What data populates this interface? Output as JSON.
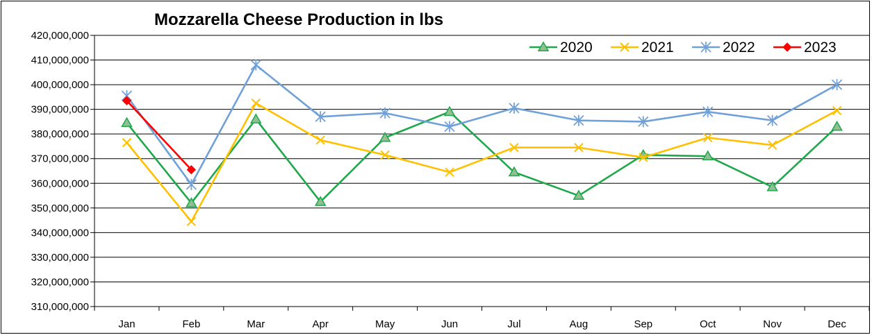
{
  "chart_data": {
    "type": "line",
    "title": "Mozzarella Cheese Production in lbs",
    "xlabel": "",
    "ylabel": "",
    "categories": [
      "Jan",
      "Feb",
      "Mar",
      "Apr",
      "May",
      "Jun",
      "Jul",
      "Aug",
      "Sep",
      "Oct",
      "Nov",
      "Dec"
    ],
    "ylim": [
      310000000,
      420000000
    ],
    "ytick_values": [
      310000000,
      320000000,
      330000000,
      340000000,
      350000000,
      360000000,
      370000000,
      380000000,
      390000000,
      400000000,
      410000000,
      420000000
    ],
    "ytick_labels": [
      "310,000,000",
      "320,000,000",
      "330,000,000",
      "340,000,000",
      "350,000,000",
      "360,000,000",
      "370,000,000",
      "380,000,000",
      "390,000,000",
      "400,000,000",
      "410,000,000",
      "420,000,000"
    ],
    "grid": true,
    "legend_position": "top-right",
    "series": [
      {
        "name": "2020",
        "color": "#1ea84a",
        "marker": "triangle",
        "values": [
          384500000,
          352000000,
          386000000,
          352500000,
          378500000,
          389000000,
          364500000,
          355000000,
          371500000,
          371000000,
          358500000,
          383000000
        ]
      },
      {
        "name": "2021",
        "color": "#ffc000",
        "marker": "x",
        "values": [
          376500000,
          344500000,
          392500000,
          377500000,
          371500000,
          364500000,
          374500000,
          374500000,
          370500000,
          378500000,
          375500000,
          389500000
        ]
      },
      {
        "name": "2022",
        "color": "#70a0d8",
        "marker": "star",
        "values": [
          395500000,
          359500000,
          408000000,
          387000000,
          388500000,
          383000000,
          390500000,
          385500000,
          385000000,
          389000000,
          385500000,
          400000000
        ]
      },
      {
        "name": "2023",
        "color": "#ff0000",
        "marker": "diamond",
        "values": [
          393500000,
          365500000,
          null,
          null,
          null,
          null,
          null,
          null,
          null,
          null,
          null,
          null
        ]
      }
    ]
  }
}
